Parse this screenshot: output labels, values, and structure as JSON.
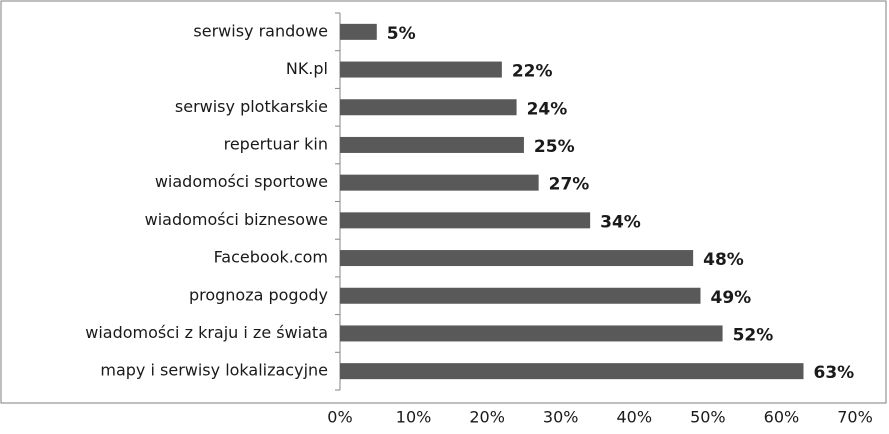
{
  "chart_data": {
    "type": "bar",
    "orientation": "horizontal",
    "categories": [
      "serwisy randowe",
      "NK.pl",
      "serwisy plotkarskie",
      "repertuar kin",
      "wiadomości sportowe",
      "wiadomości biznesowe",
      "Facebook.com",
      "prognoza pogody",
      "wiadomości z kraju i ze świata",
      "mapy i serwisy lokalizacyjne"
    ],
    "values": [
      5,
      22,
      24,
      25,
      27,
      34,
      48,
      49,
      52,
      63
    ],
    "value_labels": [
      "5%",
      "22%",
      "24%",
      "25%",
      "27%",
      "34%",
      "48%",
      "49%",
      "52%",
      "63%"
    ],
    "color": "#595959",
    "xlim": [
      0,
      70
    ],
    "xticks": [
      {
        "value": 0,
        "label": "0%"
      },
      {
        "value": 10,
        "label": "10%"
      },
      {
        "value": 20,
        "label": "20%"
      },
      {
        "value": 30,
        "label": "30%"
      },
      {
        "value": 40,
        "label": "40%"
      },
      {
        "value": 50,
        "label": "50%"
      },
      {
        "value": 60,
        "label": "60%"
      },
      {
        "value": 70,
        "label": "70%"
      }
    ]
  }
}
